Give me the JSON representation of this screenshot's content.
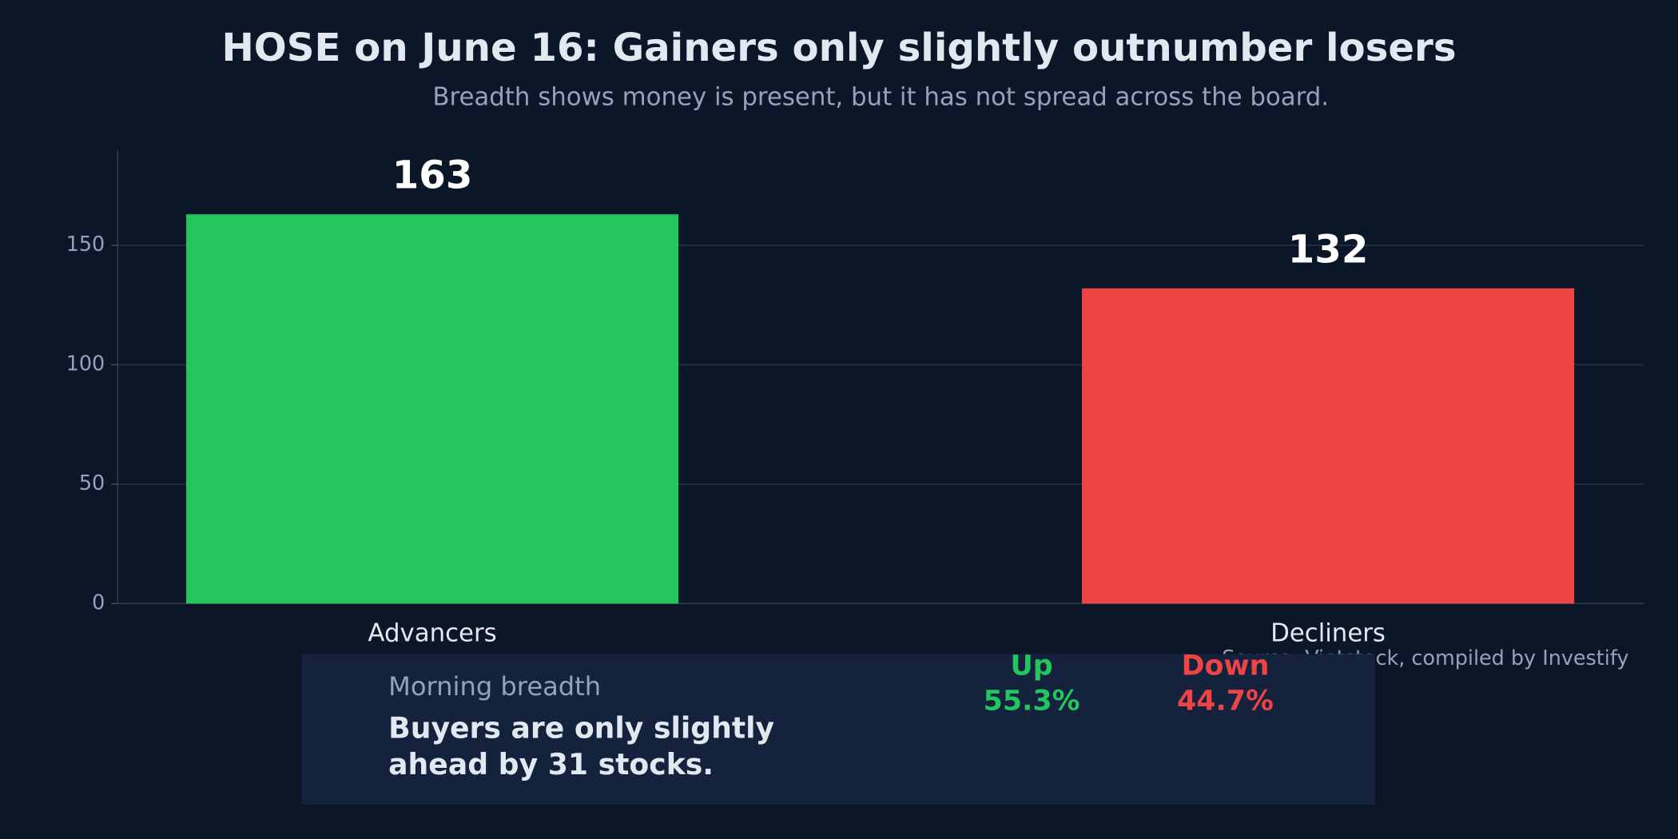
{
  "chart_data": {
    "type": "bar",
    "title": "HOSE on June 16: Gainers only slightly outnumber losers",
    "subtitle": "Breadth shows money is present, but it has not spread across the board.",
    "categories": [
      "Advancers",
      "Decliners"
    ],
    "values": [
      163,
      132
    ],
    "colors": [
      "#22c55e",
      "#ef4444"
    ],
    "ylim": [
      0,
      190
    ],
    "yticks": [
      0,
      50,
      100,
      150
    ],
    "grid": true,
    "source": "Source: Vietstock, compiled by Investify"
  },
  "panel": {
    "kicker": "Morning breadth",
    "headline_lines": [
      "Buyers are only slightly",
      "ahead by 31 stocks."
    ],
    "stats": [
      {
        "label": "Up",
        "value": "55.3%",
        "color": "#22c55e"
      },
      {
        "label": "Down",
        "value": "44.7%",
        "color": "#ef4444"
      }
    ]
  }
}
